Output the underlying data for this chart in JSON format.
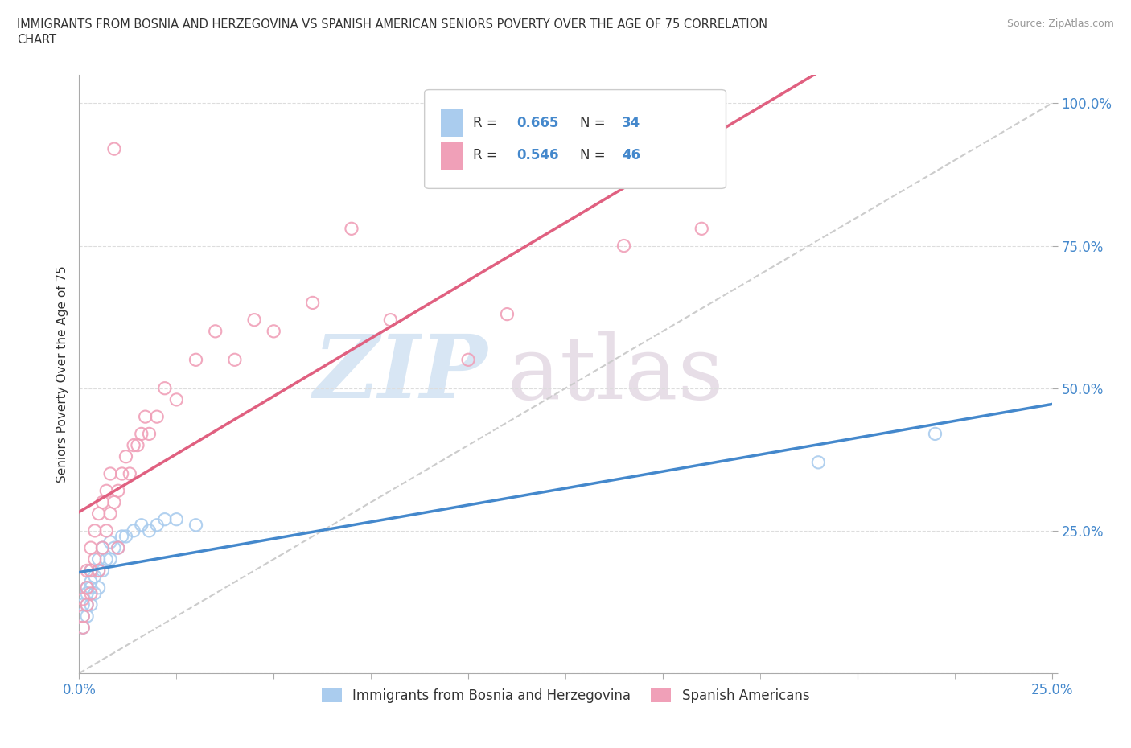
{
  "title_line1": "IMMIGRANTS FROM BOSNIA AND HERZEGOVINA VS SPANISH AMERICAN SENIORS POVERTY OVER THE AGE OF 75 CORRELATION",
  "title_line2": "CHART",
  "source": "Source: ZipAtlas.com",
  "ylabel": "Seniors Poverty Over the Age of 75",
  "xlim": [
    0.0,
    0.25
  ],
  "ylim": [
    0.0,
    1.05
  ],
  "bosnia_color": "#aaccee",
  "spanish_color": "#f0a0b8",
  "bosnia_line_color": "#4488cc",
  "spanish_line_color": "#e06080",
  "ref_line_color": "#cccccc",
  "legend_R_bosnia": "0.665",
  "legend_N_bosnia": "34",
  "legend_R_spanish": "0.546",
  "legend_N_spanish": "46",
  "legend_labels": [
    "Immigrants from Bosnia and Herzegovina",
    "Spanish Americans"
  ],
  "text_color": "#333333",
  "tick_color": "#4488cc",
  "bosnia_x": [
    0.001,
    0.001,
    0.001,
    0.002,
    0.002,
    0.002,
    0.002,
    0.003,
    0.003,
    0.003,
    0.003,
    0.004,
    0.004,
    0.005,
    0.005,
    0.005,
    0.006,
    0.006,
    0.007,
    0.008,
    0.008,
    0.009,
    0.01,
    0.011,
    0.012,
    0.014,
    0.016,
    0.018,
    0.02,
    0.022,
    0.025,
    0.03,
    0.19,
    0.22
  ],
  "bosnia_y": [
    0.08,
    0.1,
    0.12,
    0.1,
    0.12,
    0.14,
    0.15,
    0.12,
    0.15,
    0.16,
    0.18,
    0.14,
    0.17,
    0.15,
    0.18,
    0.2,
    0.18,
    0.22,
    0.2,
    0.2,
    0.23,
    0.22,
    0.22,
    0.24,
    0.24,
    0.25,
    0.26,
    0.25,
    0.26,
    0.27,
    0.27,
    0.26,
    0.37,
    0.42
  ],
  "spanish_x": [
    0.001,
    0.001,
    0.001,
    0.002,
    0.002,
    0.002,
    0.003,
    0.003,
    0.003,
    0.004,
    0.004,
    0.005,
    0.005,
    0.006,
    0.006,
    0.007,
    0.007,
    0.008,
    0.008,
    0.009,
    0.01,
    0.01,
    0.011,
    0.012,
    0.013,
    0.014,
    0.015,
    0.016,
    0.017,
    0.018,
    0.02,
    0.022,
    0.025,
    0.03,
    0.035,
    0.04,
    0.045,
    0.05,
    0.06,
    0.07,
    0.08,
    0.1,
    0.11,
    0.14,
    0.16,
    0.009
  ],
  "spanish_y": [
    0.08,
    0.1,
    0.13,
    0.12,
    0.15,
    0.18,
    0.14,
    0.18,
    0.22,
    0.2,
    0.25,
    0.18,
    0.28,
    0.22,
    0.3,
    0.25,
    0.32,
    0.28,
    0.35,
    0.3,
    0.22,
    0.32,
    0.35,
    0.38,
    0.35,
    0.4,
    0.4,
    0.42,
    0.45,
    0.42,
    0.45,
    0.5,
    0.48,
    0.55,
    0.6,
    0.55,
    0.62,
    0.6,
    0.65,
    0.78,
    0.62,
    0.55,
    0.63,
    0.75,
    0.78,
    0.92
  ]
}
